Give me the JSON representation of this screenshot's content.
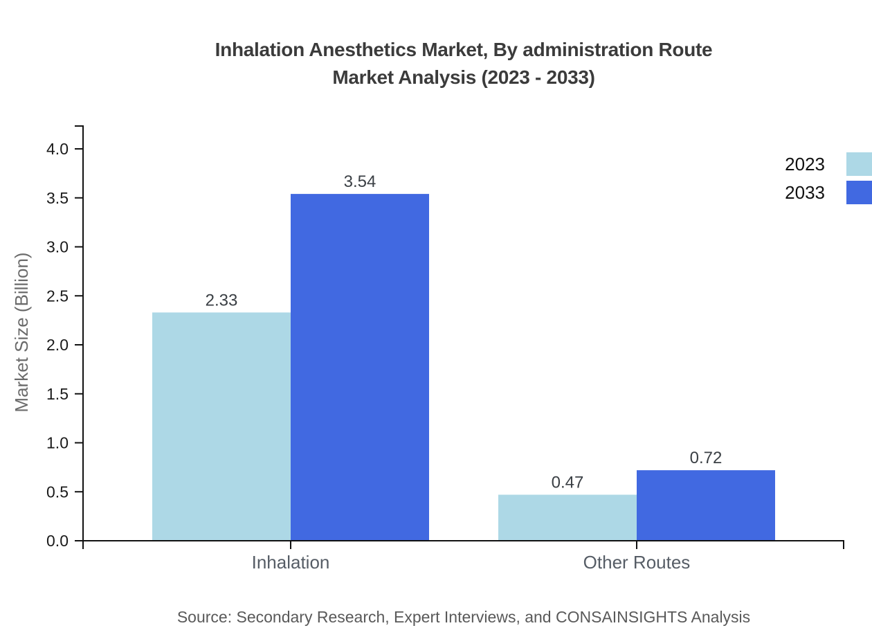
{
  "header": {
    "title_line1": "Inhalation Anesthetics Market, By administration Route",
    "title_line2": "Market Analysis (2023 - 2033)"
  },
  "footer": {
    "source": "Source: Secondary Research, Expert Interviews, and CONSAINSIGHTS Analysis"
  },
  "chart_data": {
    "type": "bar",
    "title": "Inhalation Anesthetics Market, By administration Route Market Analysis (2023 - 2033)",
    "categories": [
      "Inhalation",
      "Other Routes"
    ],
    "series": [
      {
        "name": "2023",
        "color": "#ADD8E6",
        "values": [
          2.33,
          0.47
        ]
      },
      {
        "name": "2033",
        "color": "#4169E1",
        "values": [
          3.54,
          0.72
        ]
      }
    ],
    "xlabel": "",
    "ylabel": "Market Size (Billion)",
    "ylim": [
      0,
      4
    ],
    "ytick_step": 0.5,
    "grid": false,
    "data_labels": true,
    "legend_position": "top-right"
  },
  "colors": {
    "axis": "#111111",
    "tick_label": "#1a1a1a",
    "value_label": "#3a3f44",
    "category_label": "#565d66",
    "axis_title": "#6b6b6b",
    "title": "#3b3b3b",
    "source": "#595959"
  }
}
